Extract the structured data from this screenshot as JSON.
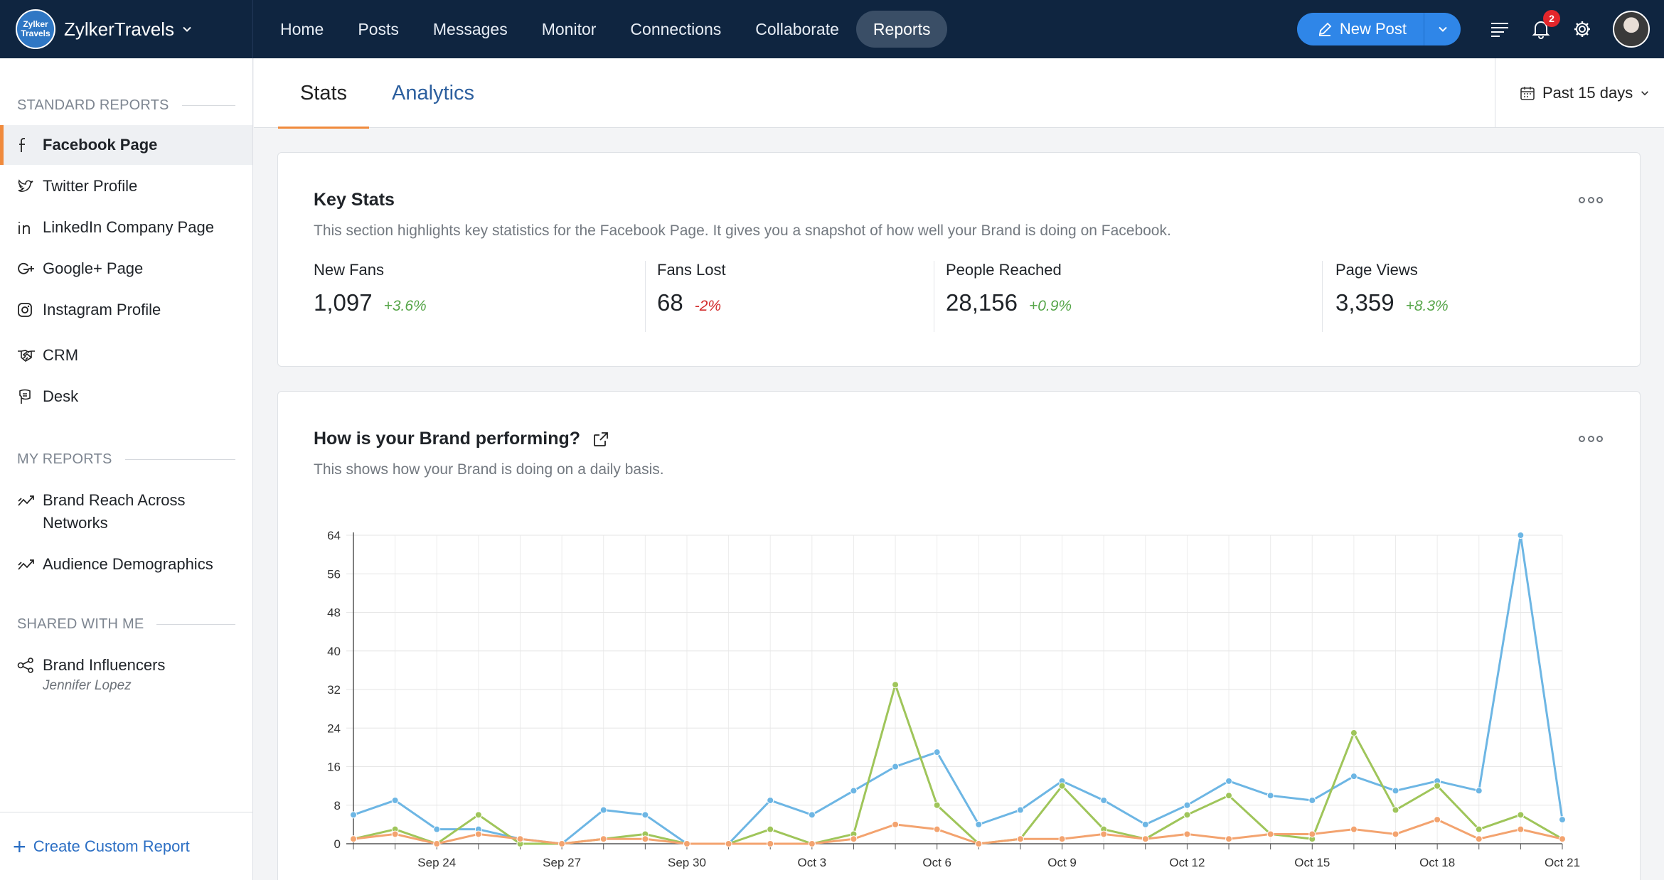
{
  "topbar": {
    "brand_logo_text": "Zylker Travels",
    "brand_name": "ZylkerTravels",
    "nav": [
      {
        "label": "Home"
      },
      {
        "label": "Posts"
      },
      {
        "label": "Messages"
      },
      {
        "label": "Monitor"
      },
      {
        "label": "Connections"
      },
      {
        "label": "Collaborate"
      },
      {
        "label": "Reports",
        "active": true
      }
    ],
    "new_post_label": "New Post",
    "notification_count": "2",
    "accent_color": "#2f86e8"
  },
  "sidebar": {
    "standard_heading": "STANDARD REPORTS",
    "standard_items": [
      {
        "label": "Facebook Page",
        "icon": "facebook-icon",
        "active": true
      },
      {
        "label": "Twitter Profile",
        "icon": "twitter-icon"
      },
      {
        "label": "LinkedIn Company Page",
        "icon": "linkedin-icon"
      },
      {
        "label": "Google+ Page",
        "icon": "google-plus-icon"
      },
      {
        "label": "Instagram Profile",
        "icon": "instagram-icon"
      },
      {
        "label": "CRM",
        "icon": "handshake-icon"
      },
      {
        "label": "Desk",
        "icon": "desk-icon"
      }
    ],
    "my_heading": "MY REPORTS",
    "my_items": [
      {
        "label": "Brand Reach Across Networks",
        "icon": "trend-icon"
      },
      {
        "label": "Audience Demographics",
        "icon": "trend-icon"
      }
    ],
    "shared_heading": "SHARED WITH ME",
    "shared_items": [
      {
        "label": "Brand Influencers",
        "sub": "Jennifer Lopez",
        "icon": "share-icon"
      }
    ],
    "create_report_label": "Create Custom Report"
  },
  "tabs": [
    {
      "label": "Stats",
      "active": true
    },
    {
      "label": "Analytics"
    }
  ],
  "period_label": "Past 15 days",
  "key_stats": {
    "title": "Key Stats",
    "description": "This section highlights key statistics for the Facebook Page. It gives you a snapshot of how well your Brand is doing on Facebook.",
    "stats": [
      {
        "label": "New Fans",
        "value": "1,097",
        "change": "+3.6%",
        "trend": "up"
      },
      {
        "label": "Fans Lost",
        "value": "68",
        "change": "-2%",
        "trend": "down"
      },
      {
        "label": "People Reached",
        "value": "28,156",
        "change": "+0.9%",
        "trend": "up"
      },
      {
        "label": "Page Views",
        "value": "3,359",
        "change": "+8.3%",
        "trend": "up"
      }
    ]
  },
  "brand_performance": {
    "title": "How is your Brand performing?",
    "description": "This shows how your Brand is doing on a daily basis."
  },
  "chart_data": {
    "type": "line",
    "title": "",
    "xlabel": "",
    "ylabel": "",
    "ylim": [
      0,
      64
    ],
    "yticks": [
      0,
      8,
      16,
      24,
      32,
      40,
      48,
      56,
      64
    ],
    "grid": true,
    "x_tick_labels": [
      "Sep 24",
      "Sep 27",
      "Sep 30",
      "Oct 3",
      "Oct 6",
      "Oct 9",
      "Oct 12",
      "Oct 15",
      "Oct 18",
      "Oct 21"
    ],
    "x_tick_indices": [
      2,
      5,
      8,
      11,
      14,
      17,
      20,
      23,
      26,
      29
    ],
    "point_count": 30,
    "series": [
      {
        "color": "#6db6e4",
        "values": [
          6,
          9,
          3,
          3,
          1,
          0,
          7,
          6,
          0,
          0,
          9,
          6,
          11,
          16,
          19,
          4,
          7,
          13,
          9,
          4,
          8,
          13,
          10,
          9,
          14,
          11,
          13,
          11,
          64,
          5
        ]
      },
      {
        "color": "#9fc55a",
        "values": [
          1,
          3,
          0,
          6,
          0,
          0,
          1,
          2,
          0,
          0,
          3,
          0,
          2,
          33,
          8,
          0,
          1,
          12,
          3,
          1,
          6,
          10,
          2,
          1,
          23,
          7,
          12,
          3,
          6,
          1
        ]
      },
      {
        "color": "#f3a36f",
        "values": [
          1,
          2,
          0,
          2,
          1,
          0,
          1,
          1,
          0,
          0,
          0,
          0,
          1,
          4,
          3,
          0,
          1,
          1,
          2,
          1,
          2,
          1,
          2,
          2,
          3,
          2,
          5,
          1,
          3,
          1
        ]
      }
    ]
  }
}
